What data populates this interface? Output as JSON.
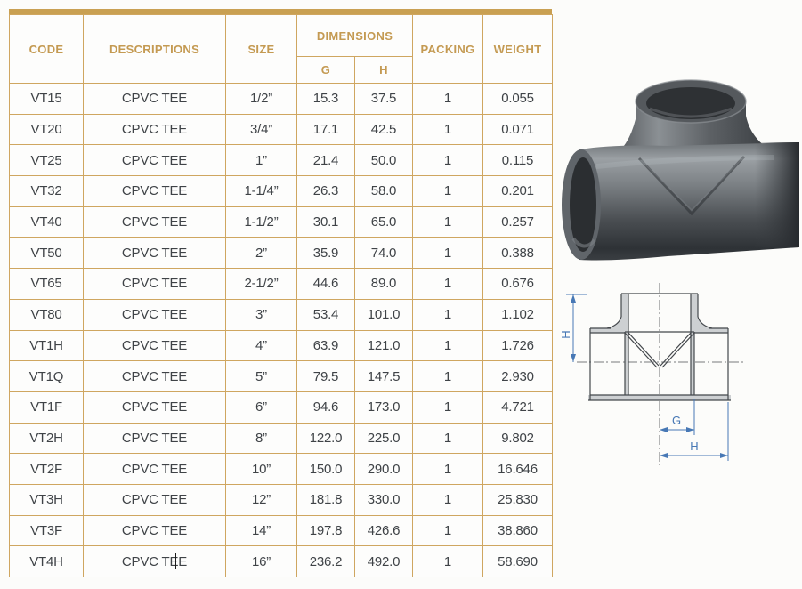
{
  "page": {
    "background": "#fcfcfa"
  },
  "colors": {
    "accent_gold": "#c9a052",
    "table_border": "#cfa660",
    "header_text": "#c49a52",
    "cell_text": "#3f4347",
    "dimension_blue": "#4778b5",
    "fitting_gray": "#4a4e52"
  },
  "table": {
    "headers": {
      "code": "CODE",
      "descriptions": "DESCRIPTIONS",
      "size": "SIZE",
      "dimensions": "DIMENSIONS",
      "g": "G",
      "h": "H",
      "packing": "PACKING",
      "weight": "WEIGHT"
    },
    "rows": [
      {
        "code": "VT15",
        "description": "CPVC TEE",
        "size": "1/2”",
        "g": "15.3",
        "h": "37.5",
        "packing": "1",
        "weight": "0.055"
      },
      {
        "code": "VT20",
        "description": "CPVC TEE",
        "size": "3/4”",
        "g": "17.1",
        "h": "42.5",
        "packing": "1",
        "weight": "0.071"
      },
      {
        "code": "VT25",
        "description": "CPVC TEE",
        "size": "1”",
        "g": "21.4",
        "h": "50.0",
        "packing": "1",
        "weight": "0.115"
      },
      {
        "code": "VT32",
        "description": "CPVC TEE",
        "size": "1-1/4”",
        "g": "26.3",
        "h": "58.0",
        "packing": "1",
        "weight": "0.201"
      },
      {
        "code": "VT40",
        "description": "CPVC TEE",
        "size": "1-1/2”",
        "g": "30.1",
        "h": "65.0",
        "packing": "1",
        "weight": "0.257"
      },
      {
        "code": "VT50",
        "description": "CPVC TEE",
        "size": "2”",
        "g": "35.9",
        "h": "74.0",
        "packing": "1",
        "weight": "0.388"
      },
      {
        "code": "VT65",
        "description": "CPVC TEE",
        "size": "2-1/2”",
        "g": "44.6",
        "h": "89.0",
        "packing": "1",
        "weight": "0.676"
      },
      {
        "code": "VT80",
        "description": "CPVC TEE",
        "size": "3”",
        "g": "53.4",
        "h": "101.0",
        "packing": "1",
        "weight": "1.102"
      },
      {
        "code": "VT1H",
        "description": "CPVC TEE",
        "size": "4”",
        "g": "63.9",
        "h": "121.0",
        "packing": "1",
        "weight": "1.726"
      },
      {
        "code": "VT1Q",
        "description": "CPVC TEE",
        "size": "5”",
        "g": "79.5",
        "h": "147.5",
        "packing": "1",
        "weight": "2.930"
      },
      {
        "code": "VT1F",
        "description": "CPVC TEE",
        "size": "6”",
        "g": "94.6",
        "h": "173.0",
        "packing": "1",
        "weight": "4.721"
      },
      {
        "code": "VT2H",
        "description": "CPVC TEE",
        "size": "8”",
        "g": "122.0",
        "h": "225.0",
        "packing": "1",
        "weight": "9.802"
      },
      {
        "code": "VT2F",
        "description": "CPVC TEE",
        "size": "10”",
        "g": "150.0",
        "h": "290.0",
        "packing": "1",
        "weight": "16.646"
      },
      {
        "code": "VT3H",
        "description": "CPVC TEE",
        "size": "12”",
        "g": "181.8",
        "h": "330.0",
        "packing": "1",
        "weight": "25.830"
      },
      {
        "code": "VT3F",
        "description": "CPVC TEE",
        "size": "14”",
        "g": "197.8",
        "h": "426.6",
        "packing": "1",
        "weight": "38.860"
      },
      {
        "code": "VT4H",
        "description": "CPVC TEE",
        "size": "16”",
        "g": "236.2",
        "h": "492.0",
        "packing": "1",
        "weight": "58.690"
      }
    ]
  },
  "caret": {
    "row": 15,
    "column": "description"
  },
  "drawing": {
    "label_h_vertical": "H",
    "label_g": "G",
    "label_h_horizontal": "H"
  }
}
